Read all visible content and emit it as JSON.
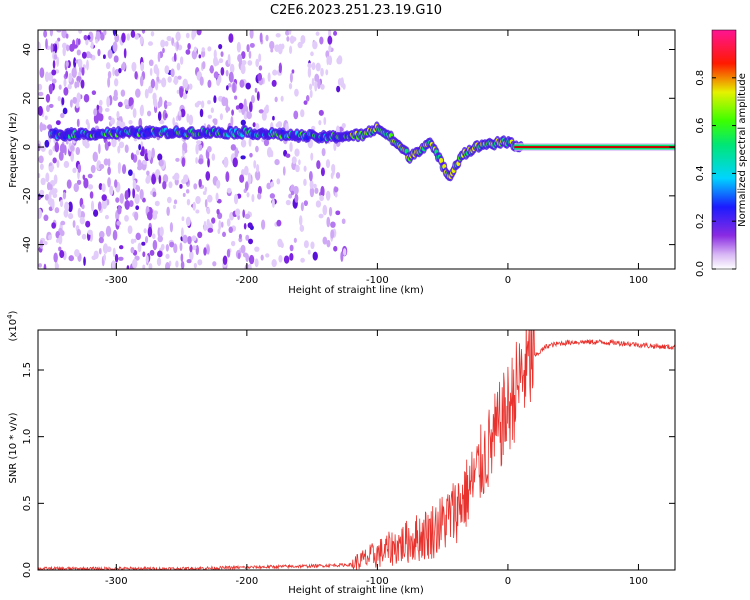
{
  "title": "C2E6.2023.251.23.19.G10",
  "colors": {
    "snr_line": "#e8322d",
    "axis": "#000000",
    "carrier": "#cc0000"
  },
  "chart_data": [
    {
      "type": "heatmap",
      "title": "C2E6.2023.251.23.19.G10",
      "xlabel": "Height of straight line (km)",
      "ylabel": "Frequency (Hz)",
      "xlim": [
        -360,
        128
      ],
      "ylim": [
        -50,
        48
      ],
      "x_ticks": [
        "-300",
        "-200",
        "-100",
        "0",
        "100"
      ],
      "y_ticks": [
        "-40",
        "-20",
        "0",
        "20",
        "40"
      ],
      "x_tick_values": [
        -300,
        -200,
        -100,
        0,
        100
      ],
      "y_tick_values": [
        -40,
        -20,
        0,
        20,
        40
      ],
      "colorbar": {
        "label": "Normalized spectral amplitude",
        "range": [
          0,
          1
        ],
        "ticks": [
          "0.0",
          "0.2",
          "0.4",
          "0.6",
          "0.8"
        ],
        "tick_values": [
          0,
          0.2,
          0.4,
          0.6,
          0.8
        ],
        "colormap": "rainbow (purple → blue → cyan → green → yellow → red → magenta)"
      },
      "features": [
        {
          "name": "noise region",
          "x_range": [
            -360,
            -125
          ],
          "freq_range": [
            -50,
            48
          ]
        },
        {
          "name": "signal track",
          "points": [
            [
              -350,
              5
            ],
            [
              -280,
              6
            ],
            [
              -200,
              6
            ],
            [
              -140,
              4
            ],
            [
              -110,
              5
            ],
            [
              -100,
              8
            ],
            [
              -90,
              4
            ],
            [
              -75,
              -4
            ],
            [
              -60,
              2
            ],
            [
              -45,
              -12
            ],
            [
              -35,
              -3
            ],
            [
              -20,
              1
            ],
            [
              0,
              2
            ],
            [
              10,
              0
            ]
          ]
        },
        {
          "name": "carrier line",
          "x_range": [
            5,
            128
          ],
          "freq": 0
        }
      ]
    },
    {
      "type": "line",
      "xlabel": "Height of straight line (km)",
      "ylabel": "SNR (10 * v/v)",
      "y_scale_label": "(x10",
      "y_scale_exp": "4",
      "y_scale": 10000,
      "xlim": [
        -360,
        128
      ],
      "ylim": [
        0,
        1.8
      ],
      "x_ticks": [
        "-300",
        "-200",
        "-100",
        "0",
        "100"
      ],
      "y_ticks": [
        "0.0",
        "0.5",
        "1.0",
        "1.5"
      ],
      "x_tick_values": [
        -300,
        -200,
        -100,
        0,
        100
      ],
      "y_tick_values": [
        0,
        0.5,
        1.0,
        1.5
      ],
      "series": [
        {
          "x": [
            -360,
            -300,
            -250,
            -200,
            -150,
            -120,
            -110,
            -100,
            -90,
            -80,
            -70,
            -60,
            -50,
            -40,
            -30,
            -20,
            -10,
            0,
            10,
            20,
            30,
            40,
            50,
            70,
            90,
            110,
            128
          ],
          "y": [
            0.01,
            0.01,
            0.01,
            0.02,
            0.03,
            0.04,
            0.08,
            0.12,
            0.16,
            0.2,
            0.24,
            0.28,
            0.35,
            0.45,
            0.6,
            0.8,
            1.0,
            1.2,
            1.45,
            1.6,
            1.68,
            1.7,
            1.71,
            1.71,
            1.7,
            1.68,
            1.67
          ]
        }
      ]
    }
  ]
}
